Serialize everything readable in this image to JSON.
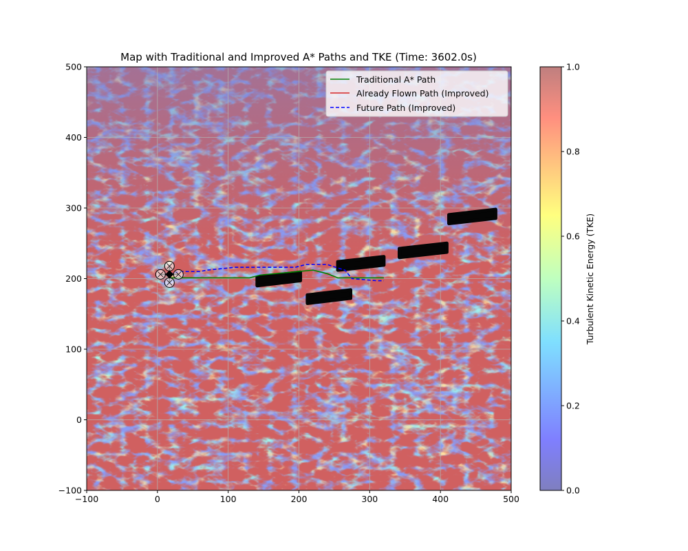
{
  "chart_data": {
    "type": "heatmap",
    "title": "Map with Traditional and Improved A* Paths and TKE (Time: 3602.0s)",
    "xlim": [
      -100,
      500
    ],
    "ylim": [
      -100,
      500
    ],
    "x_ticks": [
      "−100",
      "0",
      "100",
      "200",
      "300",
      "400",
      "500"
    ],
    "y_ticks": [
      "−100",
      "0",
      "100",
      "200",
      "300",
      "400",
      "500"
    ],
    "x_tick_values": [
      -100,
      0,
      100,
      200,
      300,
      400,
      500
    ],
    "y_tick_values": [
      -100,
      0,
      100,
      200,
      300,
      400,
      500
    ],
    "grid": true,
    "legend_position": "top-right",
    "colorbar": {
      "label": "Turbulent Kinetic Energy (TKE)",
      "range": [
        0.0,
        1.0
      ],
      "ticks": [
        "0.0",
        "0.2",
        "0.4",
        "0.6",
        "0.8",
        "1.0"
      ],
      "tick_values": [
        0.0,
        0.2,
        0.4,
        0.6,
        0.8,
        1.0
      ],
      "colormap": "jet",
      "alpha": 0.5
    },
    "series": [
      {
        "name": "Traditional A* Path",
        "color": "#008000",
        "style": "solid",
        "x": [
          17,
          40,
          130,
          145,
          220,
          240,
          255,
          320
        ],
        "y": [
          201,
          201,
          201,
          205,
          212,
          207,
          201,
          201
        ]
      },
      {
        "name": "Already Flown Path (Improved)",
        "color": "#d62728",
        "style": "solid",
        "x": [
          17
        ],
        "y": [
          206
        ]
      },
      {
        "name": "Future Path (Improved)",
        "color": "#0000ff",
        "style": "dashed",
        "x": [
          17,
          30,
          60,
          70,
          110,
          195,
          210,
          240,
          255,
          265,
          275,
          310,
          320
        ],
        "y": [
          206,
          210,
          210,
          212,
          216,
          216,
          220,
          220,
          215,
          212,
          200,
          197,
          197
        ]
      }
    ],
    "obstacles": [
      {
        "x": [
          141,
          202
        ],
        "y": [
          190,
          209
        ]
      },
      {
        "x": [
          212,
          273
        ],
        "y": [
          165,
          184
        ]
      },
      {
        "x": [
          255,
          320
        ],
        "y": [
          212,
          231
        ]
      },
      {
        "x": [
          342,
          409
        ],
        "y": [
          230,
          250
        ]
      },
      {
        "x": [
          412,
          478
        ],
        "y": [
          278,
          298
        ]
      }
    ],
    "drone": {
      "x": 17,
      "y": 206,
      "icon": "quadcopter-icon"
    }
  }
}
